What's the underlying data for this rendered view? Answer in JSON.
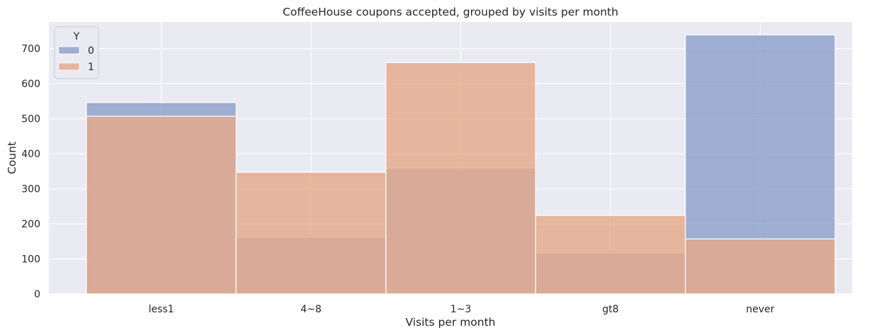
{
  "chart_data": {
    "type": "bar",
    "title": "CoffeeHouse coupons accepted, grouped by visits per month",
    "xlabel": "Visits per month",
    "ylabel": "Count",
    "categories": [
      "less1",
      "4~8",
      "1~3",
      "gt8",
      "never"
    ],
    "series": [
      {
        "name": "0",
        "values": [
          546,
          162,
          359,
          117,
          739
        ]
      },
      {
        "name": "1",
        "values": [
          507,
          347,
          660,
          224,
          157
        ]
      }
    ],
    "ylim": [
      0,
      776
    ],
    "yticks": [
      "0",
      "100",
      "200",
      "300",
      "400",
      "500",
      "600",
      "700"
    ],
    "grid": true,
    "legend": {
      "title": "Y",
      "position": "top-left"
    },
    "colors": {
      "series0": "#8da0cb",
      "series1": "#e5a98a",
      "background": "#eaeaf2",
      "grid": "#ffffff"
    }
  }
}
